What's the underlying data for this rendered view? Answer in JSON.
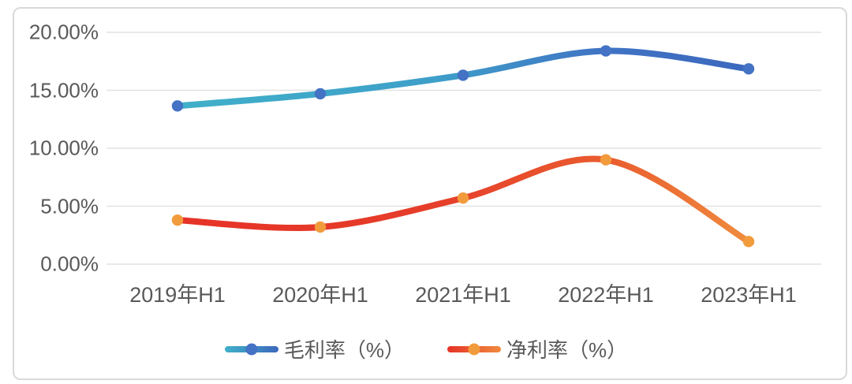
{
  "chart_data": {
    "type": "line",
    "categories": [
      "2019年H1",
      "2020年H1",
      "2021年H1",
      "2022年H1",
      "2023年H1"
    ],
    "series": [
      {
        "name": "毛利率（%）",
        "values": [
          13.65,
          14.7,
          16.3,
          18.4,
          16.85
        ],
        "line_gradient": [
          "#40b0c9",
          "#3e9fc9",
          "#4073c4",
          "#3c68bd"
        ],
        "marker_color": "#4472c4"
      },
      {
        "name": "净利率（%）",
        "values": [
          3.8,
          3.2,
          5.7,
          9.0,
          1.95
        ],
        "line_gradient": [
          "#e63227",
          "#e63e2a",
          "#e95c2f",
          "#ef8b3e"
        ],
        "marker_color": "#f29b3d"
      }
    ],
    "y_ticks": [
      "20.00%",
      "15.00%",
      "10.00%",
      "5.00%",
      "0.00%"
    ],
    "y_tick_values": [
      20,
      15,
      10,
      5,
      0
    ],
    "ylim": [
      0,
      20
    ],
    "grid": true,
    "gridline_color": "#e2e2e2",
    "text_color": "#595959",
    "legend_position": "bottom",
    "smooth": true
  }
}
